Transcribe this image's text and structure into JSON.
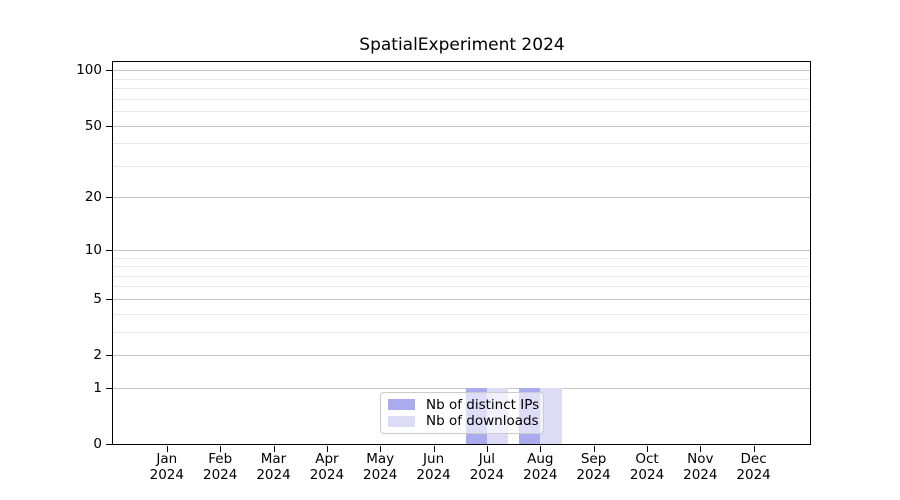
{
  "chart_data": {
    "type": "bar",
    "title": "SpatialExperiment 2024",
    "year": "2024",
    "categories": [
      "Jan",
      "Feb",
      "Mar",
      "Apr",
      "May",
      "Jun",
      "Jul",
      "Aug",
      "Sep",
      "Oct",
      "Nov",
      "Dec"
    ],
    "series": [
      {
        "name": "Nb of distinct IPs",
        "color": "#aaaaee",
        "values": [
          0,
          0,
          0,
          0,
          0,
          0,
          1,
          1,
          0,
          0,
          0,
          0
        ]
      },
      {
        "name": "Nb of downloads",
        "color": "#dcdcf7",
        "values": [
          0,
          0,
          0,
          0,
          0,
          0,
          1,
          1,
          0,
          0,
          0,
          0
        ]
      }
    ],
    "y_scale": "log1p",
    "y_ticks": [
      0,
      1,
      2,
      5,
      10,
      20,
      50,
      100
    ],
    "y_minor_ticks": [
      3,
      4,
      6,
      7,
      8,
      9,
      30,
      40,
      60,
      70,
      80,
      90
    ],
    "ylim": [
      0,
      114
    ],
    "xlabel": "",
    "ylabel": "",
    "grid": true,
    "legend_position": "lower center",
    "colors": {
      "major_grid": "#c6c6c6",
      "minor_grid": "#eaeaea",
      "axis": "#000000",
      "legend_border": "#cccccc",
      "text": "#000000"
    }
  }
}
